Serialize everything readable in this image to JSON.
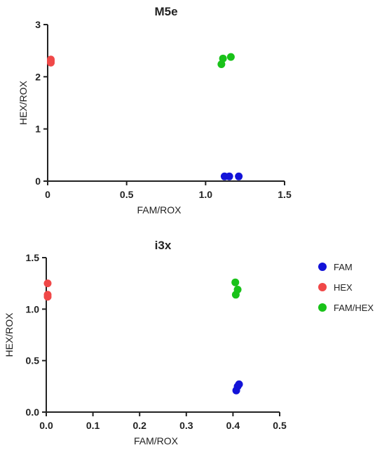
{
  "chart_data": [
    {
      "type": "scatter",
      "title": "M5e",
      "xlabel": "FAM/ROX",
      "ylabel": "HEX/ROX",
      "xlim": [
        0,
        1.5
      ],
      "ylim": [
        0,
        3
      ],
      "xticks": [
        "0",
        "0.5",
        "1.0",
        "1.5"
      ],
      "yticks": [
        "0",
        "1",
        "2",
        "3"
      ],
      "grid": false,
      "series": [
        {
          "name": "FAM",
          "color": "#1313d8",
          "points": [
            [
              1.12,
              0.09
            ],
            [
              1.15,
              0.09
            ],
            [
              1.21,
              0.09
            ]
          ]
        },
        {
          "name": "HEX",
          "color": "#f04848",
          "points": [
            [
              0.02,
              2.33
            ],
            [
              0.02,
              2.3
            ],
            [
              0.02,
              2.27
            ]
          ]
        },
        {
          "name": "FAM/HEX",
          "color": "#19c219",
          "points": [
            [
              1.1,
              2.24
            ],
            [
              1.11,
              2.35
            ],
            [
              1.16,
              2.38
            ]
          ]
        }
      ]
    },
    {
      "type": "scatter",
      "title": "i3x",
      "xlabel": "FAM/ROX",
      "ylabel": "HEX/ROX",
      "xlim": [
        0,
        0.5
      ],
      "ylim": [
        0,
        1.5
      ],
      "xticks": [
        "0.0",
        "0.1",
        "0.2",
        "0.3",
        "0.4",
        "0.5"
      ],
      "yticks": [
        "0.0",
        "0.5",
        "1.0",
        "1.5"
      ],
      "grid": false,
      "legend": "right",
      "series": [
        {
          "name": "FAM",
          "color": "#1313d8",
          "points": [
            [
              0.407,
              0.21
            ],
            [
              0.41,
              0.25
            ],
            [
              0.413,
              0.27
            ]
          ]
        },
        {
          "name": "HEX",
          "color": "#f04848",
          "points": [
            [
              0.003,
              1.25
            ],
            [
              0.003,
              1.14
            ],
            [
              0.003,
              1.12
            ]
          ]
        },
        {
          "name": "FAM/HEX",
          "color": "#19c219",
          "points": [
            [
              0.405,
              1.26
            ],
            [
              0.41,
              1.19
            ],
            [
              0.406,
              1.14
            ]
          ]
        }
      ]
    }
  ]
}
